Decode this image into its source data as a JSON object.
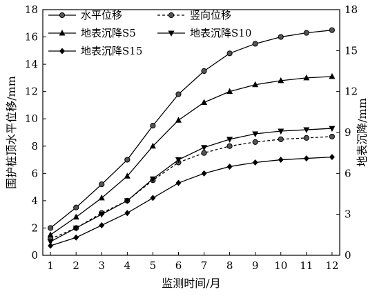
{
  "chart_data": {
    "type": "line",
    "x": [
      1,
      2,
      3,
      4,
      5,
      6,
      7,
      8,
      9,
      10,
      11,
      12
    ],
    "xlabel": "监测时间/月",
    "ylabel_left": "围护桩顶水平位移/mm",
    "ylabel_right": "地表沉降/mm",
    "xlim": [
      0.7,
      12.3
    ],
    "ylim_left": [
      0,
      18
    ],
    "ylim_right": [
      0,
      18
    ],
    "xticks": [
      1,
      2,
      3,
      4,
      5,
      6,
      7,
      8,
      9,
      10,
      11,
      12
    ],
    "yticks_left": [
      0,
      2,
      4,
      6,
      8,
      10,
      12,
      14,
      16,
      18
    ],
    "yticks_right": [
      0,
      3,
      6,
      9,
      12,
      15,
      18
    ],
    "grid": false,
    "legend_position": "top-left",
    "series": [
      {
        "name": "水平位移",
        "axis": "left",
        "marker": "circle",
        "dash": "solid",
        "values": [
          2.0,
          3.5,
          5.2,
          7.0,
          9.5,
          11.8,
          13.5,
          14.8,
          15.5,
          16.0,
          16.3,
          16.5
        ]
      },
      {
        "name": "竖向位移",
        "axis": "left",
        "marker": "circle",
        "dash": "dashed",
        "values": [
          1.2,
          2.0,
          3.1,
          4.0,
          5.5,
          6.8,
          7.5,
          8.0,
          8.3,
          8.5,
          8.6,
          8.7
        ]
      },
      {
        "name": "地表沉降S5",
        "axis": "right",
        "marker": "triangle-up",
        "dash": "solid",
        "values": [
          1.5,
          2.8,
          4.2,
          5.8,
          8.0,
          9.9,
          11.2,
          12.0,
          12.5,
          12.8,
          13.0,
          13.1
        ]
      },
      {
        "name": "地表沉降S10",
        "axis": "right",
        "marker": "triangle-down",
        "dash": "solid",
        "values": [
          1.0,
          2.0,
          3.0,
          4.0,
          5.6,
          7.0,
          7.9,
          8.5,
          8.9,
          9.1,
          9.2,
          9.3
        ]
      },
      {
        "name": "地表沉降S15",
        "axis": "right",
        "marker": "diamond",
        "dash": "solid",
        "values": [
          0.7,
          1.3,
          2.2,
          3.1,
          4.2,
          5.3,
          6.0,
          6.5,
          6.8,
          7.0,
          7.1,
          7.2
        ]
      }
    ],
    "colors": {
      "line": "#000000",
      "background": "#ffffff"
    }
  }
}
